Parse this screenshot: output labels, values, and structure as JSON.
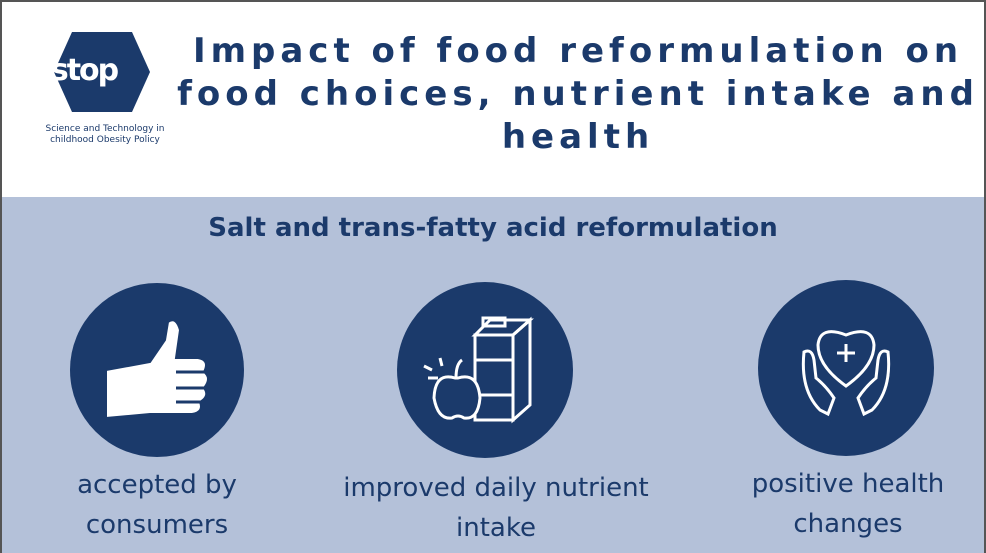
{
  "header": {
    "logo": {
      "mark": "stop",
      "caption_lines": [
        "Science and Technology in",
        "childhood Obesity Policy"
      ]
    },
    "title_lines": [
      "Impact of food reformulation on",
      "food choices, nutrient intake and",
      "health"
    ]
  },
  "section": {
    "subtitle": "Salt and trans-fatty acid reformulation",
    "items": [
      {
        "label_lines": [
          "accepted by",
          "consumers"
        ]
      },
      {
        "label_lines": [
          "improved daily nutrient",
          "intake"
        ]
      },
      {
        "label_lines": [
          "positive health",
          "changes"
        ]
      }
    ]
  }
}
